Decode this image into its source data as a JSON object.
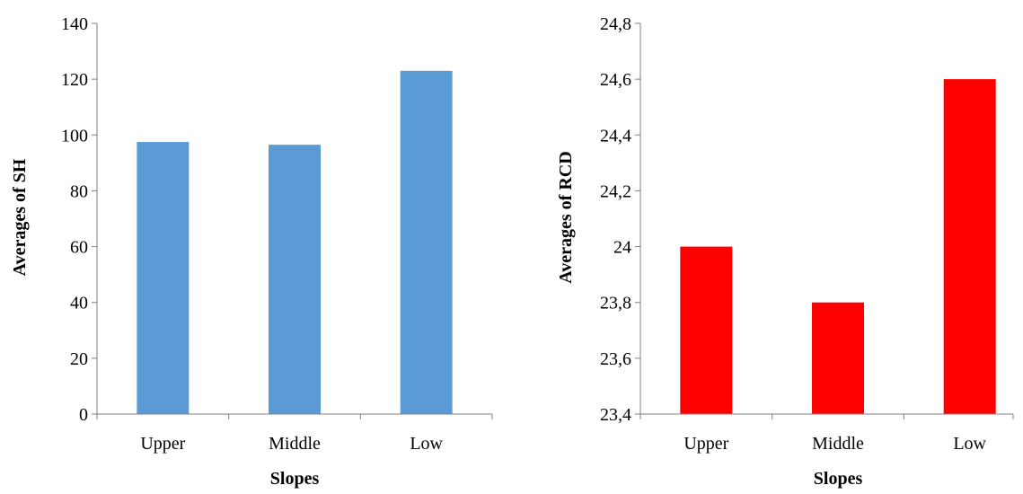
{
  "chart_data": [
    {
      "type": "bar",
      "title": "",
      "xlabel": "Slopes",
      "ylabel": "Averages of SH",
      "categories": [
        "Upper",
        "Middle",
        "Low"
      ],
      "values": [
        97.5,
        96.5,
        123
      ],
      "ylim": [
        0,
        140
      ],
      "yticks": [
        0,
        20,
        40,
        60,
        80,
        100,
        120,
        140
      ],
      "ytick_labels": [
        "0",
        "20",
        "40",
        "60",
        "80",
        "100",
        "120",
        "140"
      ],
      "color": "#5B9BD5",
      "grid": false
    },
    {
      "type": "bar",
      "title": "",
      "xlabel": "Slopes",
      "ylabel": "Averages of RCD",
      "categories": [
        "Upper",
        "Middle",
        "Low"
      ],
      "values": [
        24.0,
        23.8,
        24.6
      ],
      "ylim": [
        23.4,
        24.8
      ],
      "yticks": [
        23.4,
        23.6,
        23.8,
        24.0,
        24.2,
        24.4,
        24.6,
        24.8
      ],
      "ytick_labels": [
        "23,4",
        "23,6",
        "23,8",
        "24",
        "24,2",
        "24,4",
        "24,6",
        "24,8"
      ],
      "color": "#FF0000",
      "grid": false
    }
  ]
}
